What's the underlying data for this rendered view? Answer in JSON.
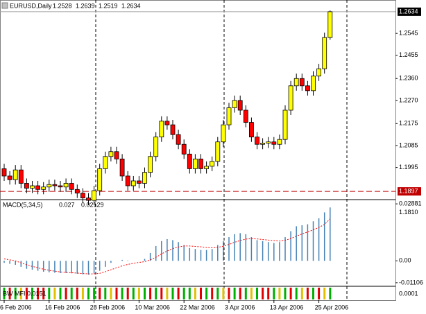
{
  "chart_data": {
    "type": "candlestick",
    "symbol": "EURUSD,Daily",
    "categories": [
      "6 Feb 2006",
      null,
      null,
      null,
      null,
      null,
      null,
      null,
      "16 Feb 2006",
      null,
      null,
      null,
      null,
      null,
      null,
      null,
      "28 Feb 2006",
      null,
      null,
      null,
      null,
      null,
      null,
      null,
      "10 Mar 2006",
      null,
      null,
      null,
      null,
      null,
      null,
      null,
      "22 Mar 2006",
      null,
      null,
      null,
      null,
      null,
      null,
      null,
      "3 Apr 2006",
      null,
      null,
      null,
      null,
      null,
      null,
      null,
      "13 Apr 2006",
      null,
      null,
      null,
      null,
      null,
      null,
      null,
      "25 Apr 2006",
      null,
      null
    ],
    "open": [
      1.199,
      1.196,
      1.1945,
      1.1985,
      1.193,
      1.191,
      1.192,
      1.1905,
      1.1915,
      1.1925,
      1.192,
      1.1915,
      1.193,
      1.1905,
      1.189,
      1.187,
      1.186,
      1.19,
      1.199,
      1.204,
      1.206,
      1.203,
      1.196,
      1.192,
      1.194,
      1.193,
      1.1975,
      1.204,
      1.212,
      1.2185,
      1.217,
      1.213,
      1.209,
      1.205,
      1.199,
      1.203,
      1.199,
      1.2,
      1.202,
      1.21,
      1.217,
      1.224,
      1.227,
      1.223,
      1.218,
      1.212,
      1.209,
      1.2095,
      1.21,
      1.209,
      1.211,
      1.223,
      1.233,
      1.236,
      1.233,
      1.231,
      1.237,
      1.24,
      1.2528
    ],
    "high": [
      1.201,
      1.198,
      1.2005,
      1.2005,
      1.195,
      1.194,
      1.194,
      1.1935,
      1.1945,
      1.1945,
      1.194,
      1.195,
      1.195,
      1.1925,
      1.191,
      1.189,
      1.192,
      1.201,
      1.206,
      1.208,
      1.208,
      1.205,
      1.198,
      1.196,
      1.196,
      1.1995,
      1.206,
      1.214,
      1.2205,
      1.2205,
      1.219,
      1.215,
      1.211,
      1.207,
      1.205,
      1.205,
      1.202,
      1.204,
      1.212,
      1.219,
      1.226,
      1.229,
      1.229,
      1.225,
      1.22,
      1.214,
      1.2115,
      1.212,
      1.212,
      1.213,
      1.225,
      1.235,
      1.238,
      1.238,
      1.235,
      1.239,
      1.242,
      1.2548,
      1.2639
    ],
    "low": [
      1.194,
      1.1925,
      1.1925,
      1.191,
      1.189,
      1.189,
      1.1885,
      1.1885,
      1.1895,
      1.19,
      1.1895,
      1.1895,
      1.1885,
      1.187,
      1.185,
      1.184,
      1.184,
      1.188,
      1.197,
      1.202,
      1.201,
      1.194,
      1.19,
      1.19,
      1.191,
      1.191,
      1.1955,
      1.202,
      1.21,
      1.215,
      1.211,
      1.207,
      1.203,
      1.197,
      1.197,
      1.197,
      1.197,
      1.198,
      1.2,
      1.208,
      1.215,
      1.222,
      1.221,
      1.216,
      1.21,
      1.207,
      1.207,
      1.2075,
      1.207,
      1.207,
      1.209,
      1.221,
      1.231,
      1.231,
      1.229,
      1.229,
      1.235,
      1.238,
      1.2519
    ],
    "close": [
      1.196,
      1.1945,
      1.1985,
      1.193,
      1.191,
      1.192,
      1.1905,
      1.1915,
      1.1925,
      1.192,
      1.1915,
      1.193,
      1.1905,
      1.189,
      1.187,
      1.186,
      1.19,
      1.199,
      1.204,
      1.206,
      1.203,
      1.196,
      1.192,
      1.194,
      1.193,
      1.1975,
      1.204,
      1.212,
      1.2185,
      1.217,
      1.213,
      1.209,
      1.205,
      1.199,
      1.203,
      1.199,
      1.2,
      1.202,
      1.21,
      1.217,
      1.224,
      1.227,
      1.223,
      1.218,
      1.212,
      1.209,
      1.2095,
      1.21,
      1.209,
      1.211,
      1.223,
      1.233,
      1.236,
      1.233,
      1.231,
      1.237,
      1.24,
      1.2528,
      1.2634
    ],
    "up_color": "#ffff00",
    "down_color": "#ff0000",
    "ylim": [
      1.1866,
      1.2682
    ],
    "yticks": [
      1.2545,
      1.2455,
      {
        "value": 1.236,
        "label": "1.2360"
      },
      {
        "value": 1.227,
        "label": "1.2270"
      },
      1.2175,
      1.2085,
      1.1995,
      {
        "value": 1.181,
        "label": "1.1810"
      }
    ],
    "level_line": 1.1897,
    "macd": {
      "label": "MACD(5,34,5)",
      "values": [
        -0.001,
        -0.0015,
        -0.002,
        -0.003,
        -0.004,
        -0.0045,
        -0.005,
        -0.0055,
        -0.0058,
        -0.006,
        -0.0062,
        -0.0062,
        -0.0063,
        -0.0065,
        -0.0068,
        -0.007,
        -0.0065,
        -0.005,
        -0.003,
        -0.001,
        0.0,
        0.0005,
        0.0002,
        0.0,
        0.0,
        0.001,
        0.004,
        0.0075,
        0.01,
        0.011,
        0.0105,
        0.0095,
        0.008,
        0.0065,
        0.006,
        0.0055,
        0.0055,
        0.006,
        0.008,
        0.01,
        0.012,
        0.0135,
        0.014,
        0.0135,
        0.012,
        0.0105,
        0.01,
        0.0095,
        0.009,
        0.0095,
        0.012,
        0.015,
        0.0175,
        0.018,
        0.0185,
        0.02,
        0.0215,
        0.0245,
        0.027
      ],
      "signal": [
        0.001,
        0.0005,
        0.0,
        -0.001,
        -0.002,
        -0.0028,
        -0.0035,
        -0.0042,
        -0.0048,
        -0.0052,
        -0.0056,
        -0.0058,
        -0.006,
        -0.0062,
        -0.0064,
        -0.0066,
        -0.0066,
        -0.0063,
        -0.0055,
        -0.0045,
        -0.0035,
        -0.0025,
        -0.0018,
        -0.0012,
        -0.0008,
        -0.0004,
        0.0005,
        0.0018,
        0.0035,
        0.005,
        0.0062,
        0.007,
        0.0075,
        0.0075,
        0.0073,
        0.0071,
        0.0068,
        0.0066,
        0.0068,
        0.0074,
        0.0083,
        0.0094,
        0.0103,
        0.011,
        0.0112,
        0.0111,
        0.0108,
        0.0105,
        0.0102,
        0.01,
        0.0104,
        0.0113,
        0.0125,
        0.0136,
        0.0146,
        0.0157,
        0.0169,
        0.0184,
        0.02129
      ],
      "hist_color": "#4682b4",
      "signal_color": "#ff0000",
      "ylim": [
        -0.0125,
        0.0306
      ],
      "yticks": [
        0.02881,
        {
          "value": 0,
          "label": "0.00"
        },
        -0.01106
      ]
    },
    "mfi": {
      "label": "BW MFI 0.0151",
      "colors": [
        "#00b000",
        "#e00000",
        "#00b000",
        "#e0c000",
        "#e00000",
        "#00b000",
        "#e00000",
        "#e00000",
        "#00b000",
        "#e0c000",
        "#00b000",
        "#e00000",
        "#00b000",
        "#e00000",
        "#e0c000",
        "#00b000",
        "#00b000",
        "#e00000",
        "#00b000",
        "#e0c000",
        "#e00000",
        "#00b000",
        "#e00000",
        "#00b000",
        "#e0c000",
        "#00b000",
        "#e00000",
        "#00b000",
        "#e00000",
        "#e0c000",
        "#00b000",
        "#e00000",
        "#00b000",
        "#00b000",
        "#e0c000",
        "#e00000",
        "#00b000",
        "#e00000",
        "#00b000",
        "#e0c000",
        "#e00000",
        "#00b000",
        "#e00000",
        "#00b000",
        "#e0c000",
        "#00b000",
        "#e00000",
        "#e00000",
        "#00b000",
        "#e0c000",
        "#00b000",
        "#e00000",
        "#00b000",
        "#e0c000",
        "#e00000",
        "#00b000",
        "#e00000",
        "#e0c000",
        "#00b000"
      ],
      "yticks": [
        0.0001
      ]
    }
  }
}
